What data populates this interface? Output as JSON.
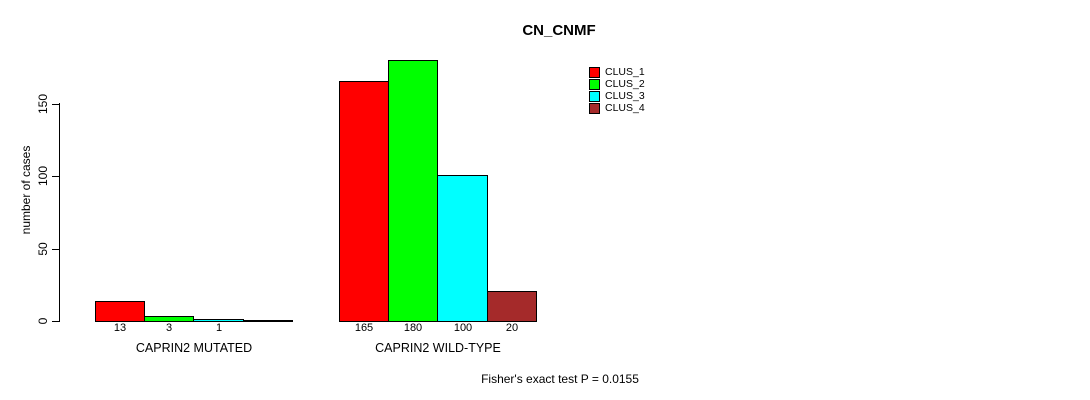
{
  "chart_data": {
    "type": "bar",
    "title": "CN_CNMF",
    "ylabel": "number of cases",
    "xlabel": "",
    "ylim": [
      0,
      180
    ],
    "yticks": [
      0,
      50,
      100,
      150
    ],
    "grid": false,
    "legend_position": "top-right",
    "legend": [
      {
        "label": "CLUS_1",
        "color": "#ff0000"
      },
      {
        "label": "CLUS_2",
        "color": "#00ff00"
      },
      {
        "label": "CLUS_3",
        "color": "#00ffff"
      },
      {
        "label": "CLUS_4",
        "color": "#a52a2a"
      }
    ],
    "groups": [
      {
        "label": "CAPRIN2 MUTATED",
        "bars": [
          {
            "series": "CLUS_1",
            "value": 13,
            "value_label": "13",
            "color": "#ff0000"
          },
          {
            "series": "CLUS_2",
            "value": 3,
            "value_label": "3",
            "color": "#00ff00"
          },
          {
            "series": "CLUS_3",
            "value": 1,
            "value_label": "1",
            "color": "#00ffff"
          },
          {
            "series": "CLUS_4",
            "value": 0,
            "value_label": "",
            "color": "#a52a2a"
          }
        ]
      },
      {
        "label": "CAPRIN2 WILD-TYPE",
        "bars": [
          {
            "series": "CLUS_1",
            "value": 165,
            "value_label": "165",
            "color": "#ff0000"
          },
          {
            "series": "CLUS_2",
            "value": 180,
            "value_label": "180",
            "color": "#00ff00"
          },
          {
            "series": "CLUS_3",
            "value": 100,
            "value_label": "100",
            "color": "#00ffff"
          },
          {
            "series": "CLUS_4",
            "value": 20,
            "value_label": "20",
            "color": "#a52a2a"
          }
        ]
      }
    ],
    "annotation": "Fisher's exact test P = 0.0155",
    "colors": {
      "background": "#ffffff",
      "axis": "#000000",
      "bar_border": "#000000",
      "text": "#000000"
    }
  }
}
